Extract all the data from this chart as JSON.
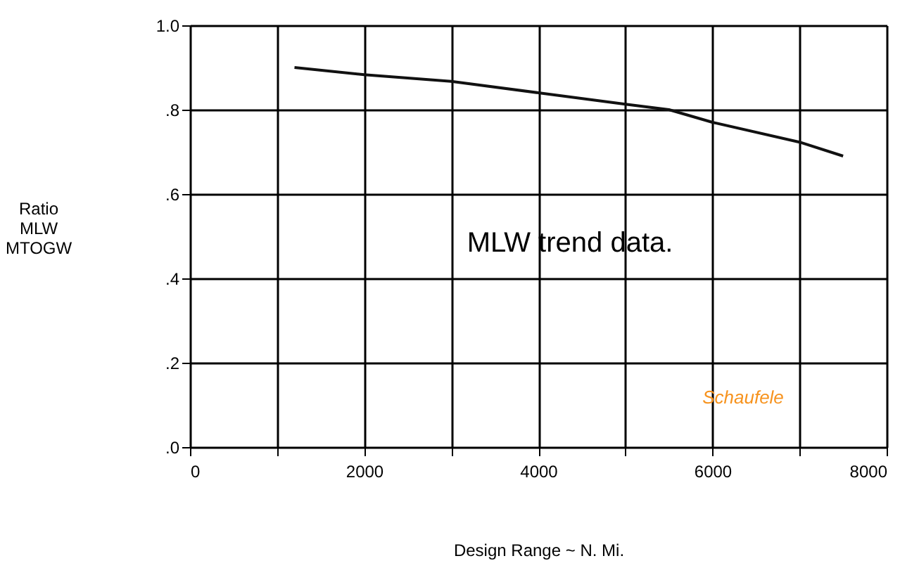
{
  "chart_data": {
    "type": "line",
    "xlabel": "Design Range ~ N. Mi.",
    "ylabel": "Ratio\nMLW\nMTOGW",
    "annotations": [
      "MLW trend data.",
      "Schaufele"
    ],
    "series": [
      {
        "color": "#111111",
        "x": [
          1200,
          2000,
          3000,
          4000,
          5000,
          5500,
          6000,
          7000,
          7500
        ],
        "values": [
          0.9,
          0.883,
          0.867,
          0.84,
          0.813,
          0.8,
          0.77,
          0.723,
          0.69
        ]
      }
    ],
    "xlim": [
      0,
      8000
    ],
    "xticks": [
      0,
      {
        "value": 1000,
        "label": null
      },
      2000,
      {
        "value": 3000,
        "label": null
      },
      4000,
      {
        "value": 5000,
        "label": null
      },
      6000,
      {
        "value": 7000,
        "label": null
      },
      8000
    ],
    "ylim": [
      0,
      1.0
    ],
    "yticks": [
      {
        "value": 0,
        "label": ".0"
      },
      {
        "value": 0.2,
        "label": ".2"
      },
      {
        "value": 0.4,
        "label": ".4"
      },
      {
        "value": 0.6,
        "label": ".6"
      },
      {
        "value": 0.8,
        "label": ".8"
      },
      {
        "value": 1.0,
        "label": "1.0"
      }
    ],
    "grid": true,
    "line_style": "solid",
    "marker": "none"
  }
}
